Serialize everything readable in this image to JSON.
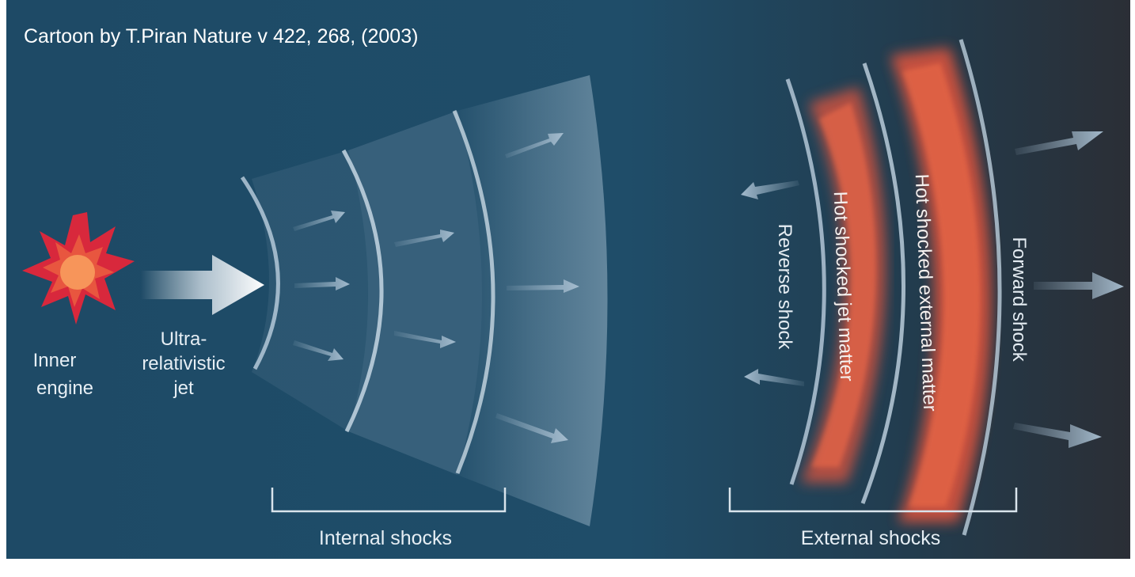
{
  "caption": "Cartoon by T.Piran Nature v 422, 268, (2003)",
  "labels": {
    "inner_engine": [
      "Inner",
      "engine"
    ],
    "jet": [
      "Ultra-",
      "relativistic",
      "jet"
    ],
    "internal_shocks": "Internal shocks",
    "external_shocks": "External shocks",
    "reverse_shock": "Reverse shock",
    "hot_jet_matter": "Hot shocked jet matter",
    "hot_external_matter": "Hot shocked external matter",
    "forward_shock": "Forward shock"
  },
  "colors": {
    "background_left": "#1d4763",
    "background_right": "#2b2f36",
    "hot_matter": "#e2553c",
    "shock_line": "#b4c8d8",
    "explosion_outer": "#d8283c",
    "explosion_inner": "#f7955a"
  }
}
